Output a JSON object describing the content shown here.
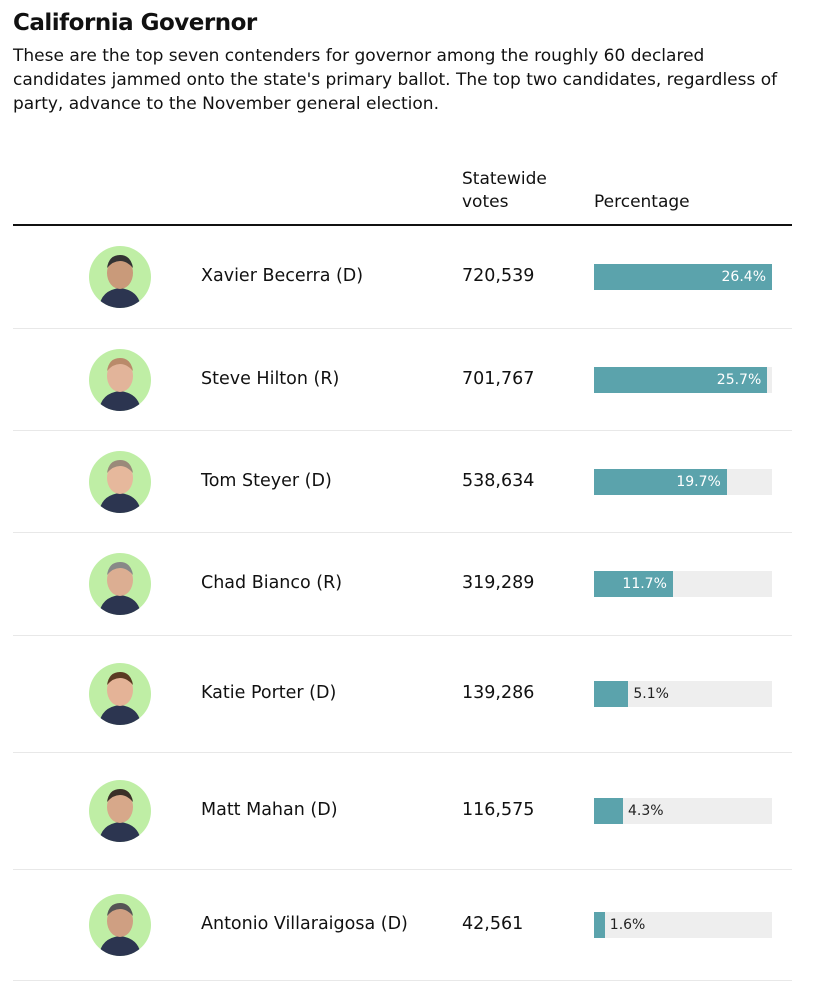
{
  "title": "California Governor",
  "description": "These are the top seven contenders for governor among the roughly 60 declared candidates jammed onto the state's primary ballot. The top two candidates, regardless of party, advance to the November general election.",
  "table": {
    "headers": [
      "Statewide votes",
      "Percentage"
    ],
    "rows": [
      {
        "name": "Xavier Becerra (D)",
        "votes": "720,539",
        "percentage": 26.4,
        "percentage_label": "26.4%"
      },
      {
        "name": "Steve Hilton (R)",
        "votes": "701,767",
        "percentage": 25.7,
        "percentage_label": "25.7%"
      },
      {
        "name": "Tom Steyer (D)",
        "votes": "538,634",
        "percentage": 19.7,
        "percentage_label": "19.7%"
      },
      {
        "name": "Chad Bianco (R)",
        "votes": "319,289",
        "percentage": 11.7,
        "percentage_label": "11.7%"
      },
      {
        "name": "Katie Porter (D)",
        "votes": "139,286",
        "percentage": 5.1,
        "percentage_label": "5.1%"
      },
      {
        "name": "Matt Mahan (D)",
        "votes": "116,575",
        "percentage": 4.3,
        "percentage_label": "4.3%"
      },
      {
        "name": "Antonio Villaraigosa (D)",
        "votes": "42,561",
        "percentage": 1.6,
        "percentage_label": "1.6%"
      }
    ]
  }
}
